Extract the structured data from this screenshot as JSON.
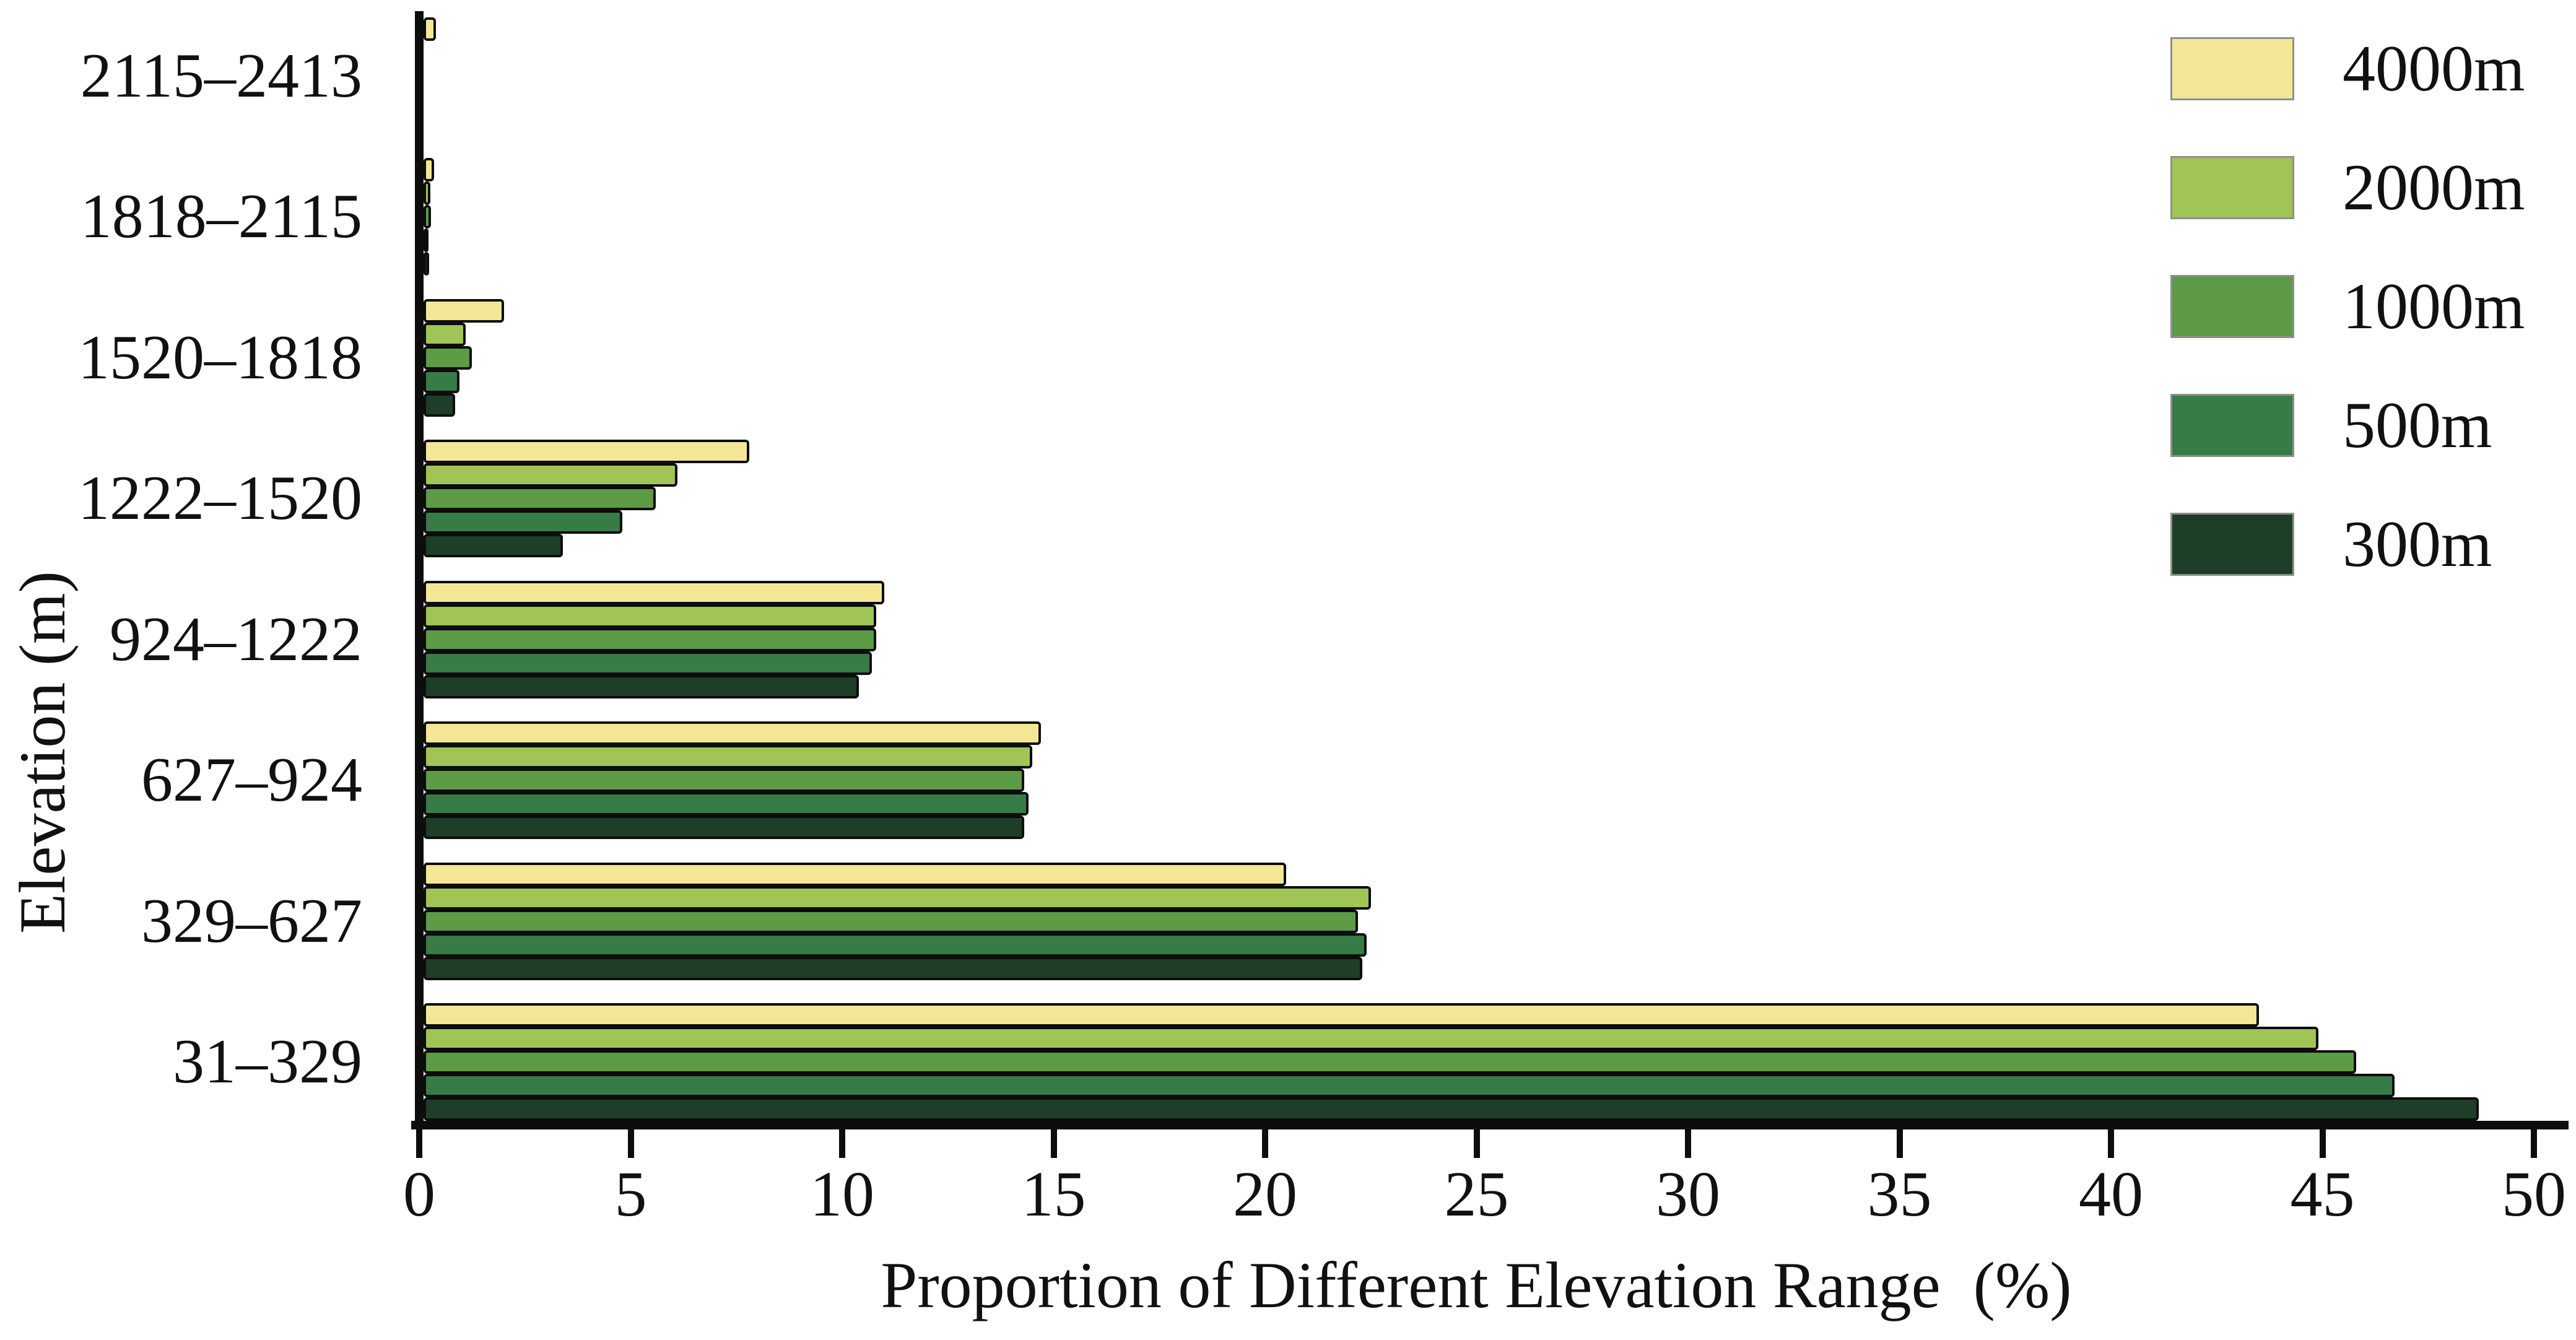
{
  "figure": {
    "xlabel": "Proportion of Different Elevation Range  (%)",
    "ylabel": "Elevation (m)"
  },
  "chart_data": {
    "type": "bar",
    "orientation": "horizontal",
    "title": "",
    "xlabel": "Proportion of Different Elevation Range  (%)",
    "ylabel": "Elevation (m)",
    "categories_top_to_bottom": [
      "2115–2413",
      "1818–2115",
      "1520–1818",
      "1222–1520",
      "924–1222",
      "627–924",
      "329–627",
      "31–329"
    ],
    "series": [
      {
        "name": "4000m",
        "color": "#f3e795",
        "values": [
          0.4,
          0.35,
          2.0,
          7.8,
          11.0,
          14.7,
          20.5,
          43.5
        ]
      },
      {
        "name": "2000m",
        "color": "#a0c455",
        "values": [
          0,
          0.27,
          1.1,
          6.1,
          10.8,
          14.5,
          22.5,
          44.9
        ]
      },
      {
        "name": "1000m",
        "color": "#5d9b47",
        "values": [
          0,
          0.28,
          1.25,
          5.6,
          10.8,
          14.3,
          22.2,
          45.8
        ]
      },
      {
        "name": "500m",
        "color": "#377b47",
        "values": [
          0,
          0.22,
          0.95,
          4.8,
          10.7,
          14.4,
          22.4,
          46.7
        ]
      },
      {
        "name": "300m",
        "color": "#1e3e28",
        "values": [
          0,
          0.24,
          0.85,
          3.4,
          10.4,
          14.3,
          22.3,
          48.7
        ]
      }
    ],
    "x_ticks": [
      0,
      5,
      10,
      15,
      20,
      25,
      30,
      35,
      40,
      45,
      50
    ],
    "xlim": [
      0,
      50
    ],
    "legend_position": "upper right",
    "grid": false,
    "axis_color": "#0d0d0d",
    "bar_border_color": "#0d0d0d"
  }
}
